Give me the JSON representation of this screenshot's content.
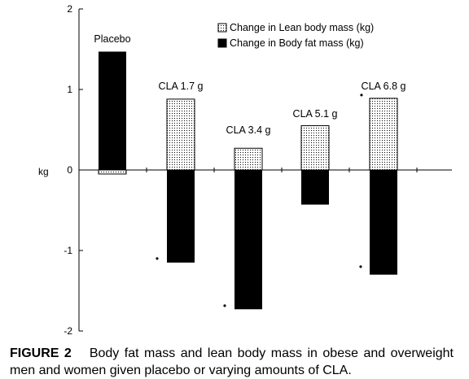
{
  "chart_data": {
    "type": "bar",
    "ylabel": "kg",
    "ylim": [
      -2,
      2
    ],
    "yticks": [
      "2",
      "1",
      "0",
      "-1",
      "-2"
    ],
    "categories": [
      "Placebo",
      "CLA 1.7 g",
      "CLA 3.4 g",
      "CLA 5.1 g",
      "CLA 6.8 g"
    ],
    "series": [
      {
        "name": "Change in Lean body mass (kg)",
        "pattern": "dotted",
        "values": [
          -0.05,
          0.88,
          0.27,
          0.55,
          0.89
        ]
      },
      {
        "name": "Change in Body fat mass (kg)",
        "pattern": "solid",
        "values": [
          1.47,
          -1.15,
          -1.73,
          -0.43,
          -1.3
        ]
      }
    ],
    "significance_markers": [
      {
        "category": "CLA 1.7 g",
        "series": "Change in Body fat mass (kg)",
        "symbol": "•"
      },
      {
        "category": "CLA 3.4 g",
        "series": "Change in Body fat mass (kg)",
        "symbol": "•"
      },
      {
        "category": "CLA 6.8 g",
        "series": "Change in Lean body mass (kg)",
        "symbol": "•"
      },
      {
        "category": "CLA 6.8 g",
        "series": "Change in Body fat mass (kg)",
        "symbol": "•"
      }
    ],
    "legend_position": "top-right",
    "grid": false
  },
  "caption": {
    "label": "FIGURE 2",
    "text": "Body fat mass and lean body mass in obese and overweight men and women given placebo or varying amounts of CLA."
  },
  "colors": {
    "fat_bar": "#000000",
    "lean_dots": "#000000",
    "background": "#ffffff"
  }
}
